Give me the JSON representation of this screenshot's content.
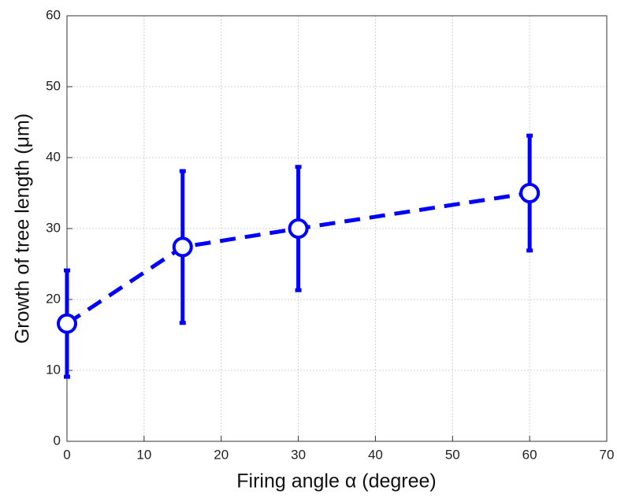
{
  "chart_data": {
    "type": "errorbar",
    "xlabel": "Firing angle α (degree)",
    "ylabel": "Growth of tree length (μm)",
    "x": [
      0,
      15,
      30,
      60
    ],
    "values": [
      16.6,
      27.4,
      30.0,
      35.0
    ],
    "errors": [
      7.5,
      10.7,
      8.7,
      8.1
    ],
    "color": "#0000ff",
    "xlim": [
      0,
      70
    ],
    "xticks": [
      0,
      10,
      20,
      30,
      40,
      50,
      60,
      70
    ],
    "ylim": [
      0,
      60
    ],
    "yticks": [
      0,
      10,
      20,
      30,
      40,
      50,
      60
    ],
    "grid": true
  }
}
